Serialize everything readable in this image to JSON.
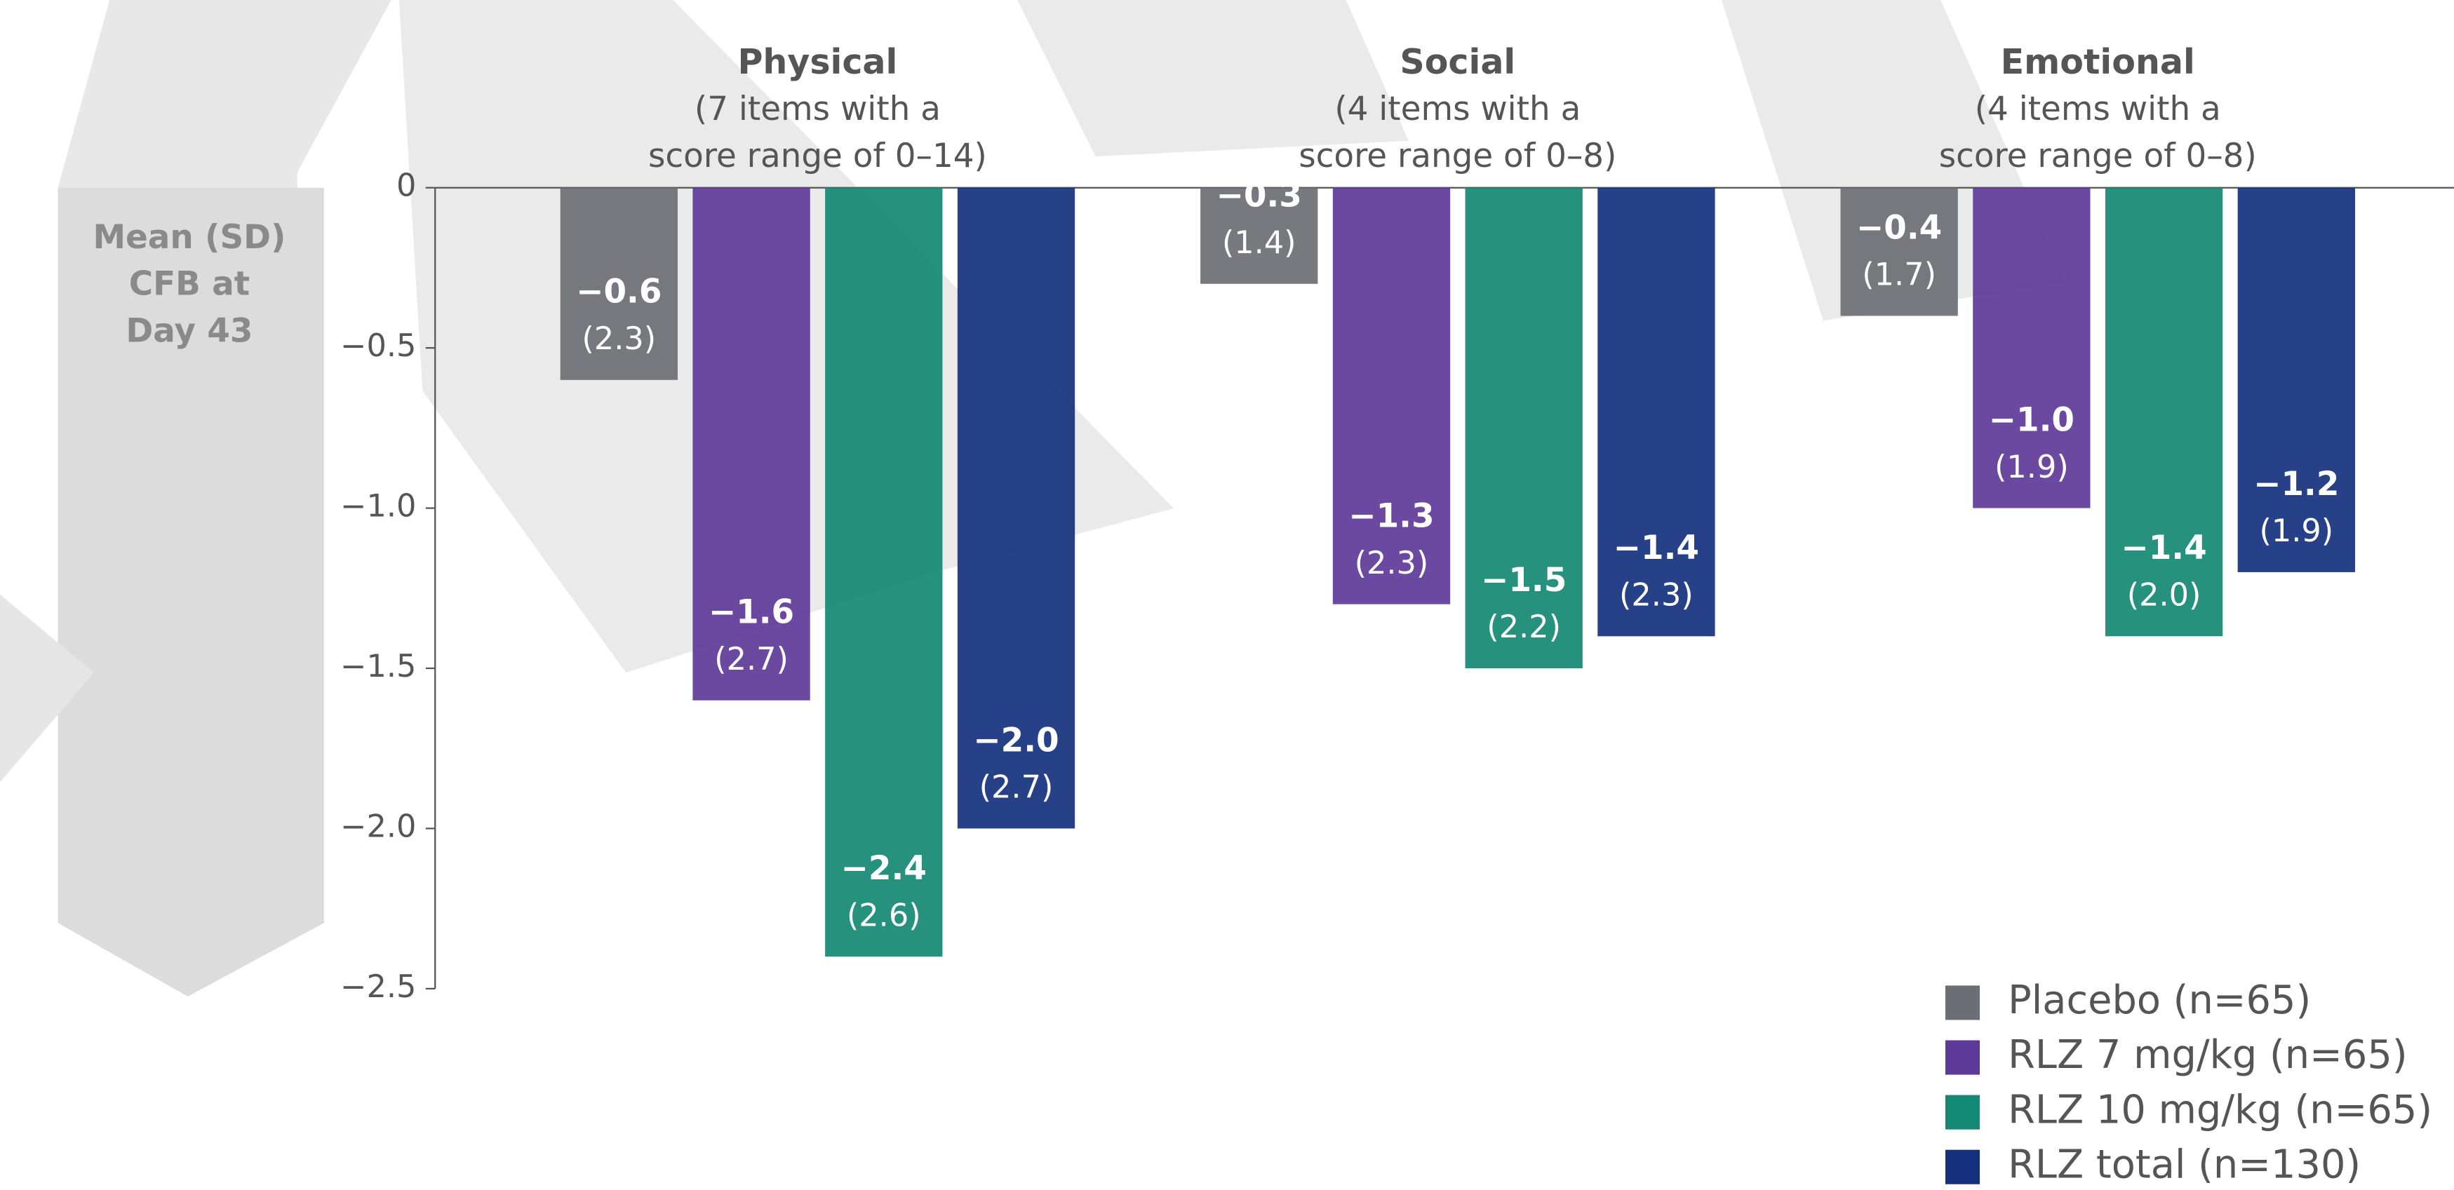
{
  "chart_data": {
    "type": "bar",
    "y_label": [
      "Mean (SD)",
      "CFB at",
      "Day 43"
    ],
    "categories": [
      "Physical",
      "Social",
      "Emotional"
    ],
    "category_subtitles": [
      [
        "(7 items with a",
        "score range of 0–14)"
      ],
      [
        "(4 items with a",
        "score range of 0–8)"
      ],
      [
        "(4 items with a",
        "score range of 0–8)"
      ]
    ],
    "series": [
      {
        "name": "Placebo (n=65)",
        "color": "#6b6e74",
        "values": [
          -0.6,
          -0.3,
          -0.4
        ],
        "value_labels": [
          "−0.6",
          "−0.3",
          "−0.4"
        ],
        "sd_labels": [
          "(2.3)",
          "(1.4)",
          "(1.7)"
        ]
      },
      {
        "name": "RLZ 7 mg/kg (n=65)",
        "color": "#5e3a98",
        "values": [
          -1.6,
          -1.3,
          -1.0
        ],
        "value_labels": [
          "−1.6",
          "−1.3",
          "−1.0"
        ],
        "sd_labels": [
          "(2.7)",
          "(2.3)",
          "(1.9)"
        ]
      },
      {
        "name": "RLZ 10 mg/kg (n=65)",
        "color": "#138872",
        "values": [
          -2.4,
          -1.5,
          -1.4
        ],
        "value_labels": [
          "−2.4",
          "−1.5",
          "−1.4"
        ],
        "sd_labels": [
          "(2.6)",
          "(2.2)",
          "(2.0)"
        ]
      },
      {
        "name": "RLZ total (n=130)",
        "color": "#15317e",
        "values": [
          -2.0,
          -1.4,
          -1.2
        ],
        "value_labels": [
          "−2.0",
          "−1.4",
          "−1.2"
        ],
        "sd_labels": [
          "(2.7)",
          "(2.3)",
          "(1.9)"
        ]
      }
    ],
    "ylim": [
      -2.5,
      0
    ],
    "yticks": [
      0,
      {
        "value": -0.5,
        "label": "−0.5"
      },
      {
        "value": -1.0,
        "label": "−1.0"
      },
      {
        "value": -1.5,
        "label": "−1.5"
      },
      {
        "value": -2.0,
        "label": "−2.0"
      },
      {
        "value": -2.5,
        "label": "−2.5"
      }
    ],
    "legend": "bottom-right"
  }
}
